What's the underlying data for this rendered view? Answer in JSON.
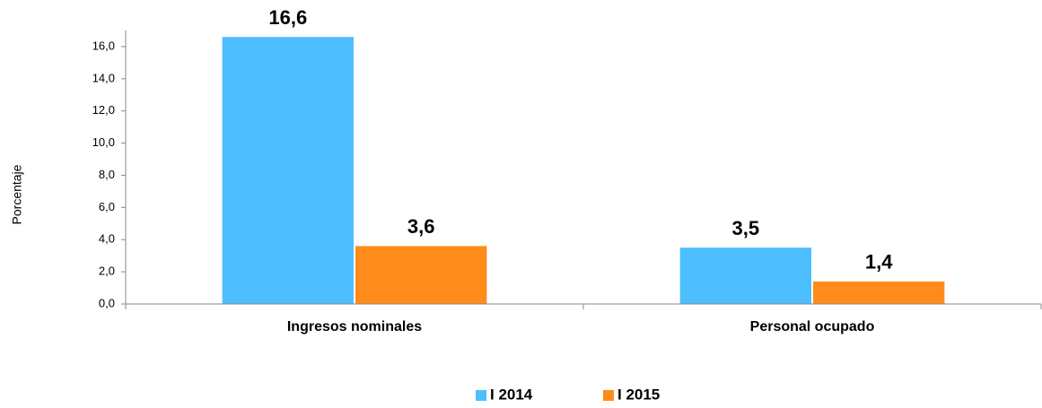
{
  "chart_data": {
    "type": "bar",
    "y_label": "Porcentaje",
    "categories": [
      "Ingresos nominales",
      "Personal ocupado"
    ],
    "series": [
      {
        "name": "I 2014",
        "color": "#4dbfff",
        "values": [
          16.6,
          3.5
        ],
        "value_labels": [
          "16,6",
          "3,5"
        ]
      },
      {
        "name": "I 2015",
        "color": "#ff8c1a",
        "values": [
          3.6,
          1.4
        ],
        "value_labels": [
          "3,6",
          "1,4"
        ]
      }
    ],
    "ylim": [
      0,
      17
    ],
    "yticks": [
      {
        "value": 0,
        "label": "0,0"
      },
      {
        "value": 2,
        "label": "2,0"
      },
      {
        "value": 4,
        "label": "4,0"
      },
      {
        "value": 6,
        "label": "6,0"
      },
      {
        "value": 8,
        "label": "8,0"
      },
      {
        "value": 10,
        "label": "10,0"
      },
      {
        "value": 12,
        "label": "12,0"
      },
      {
        "value": 14,
        "label": "14,0"
      },
      {
        "value": 16,
        "label": "16,0"
      }
    ],
    "grid": false,
    "legend": "bottom"
  }
}
